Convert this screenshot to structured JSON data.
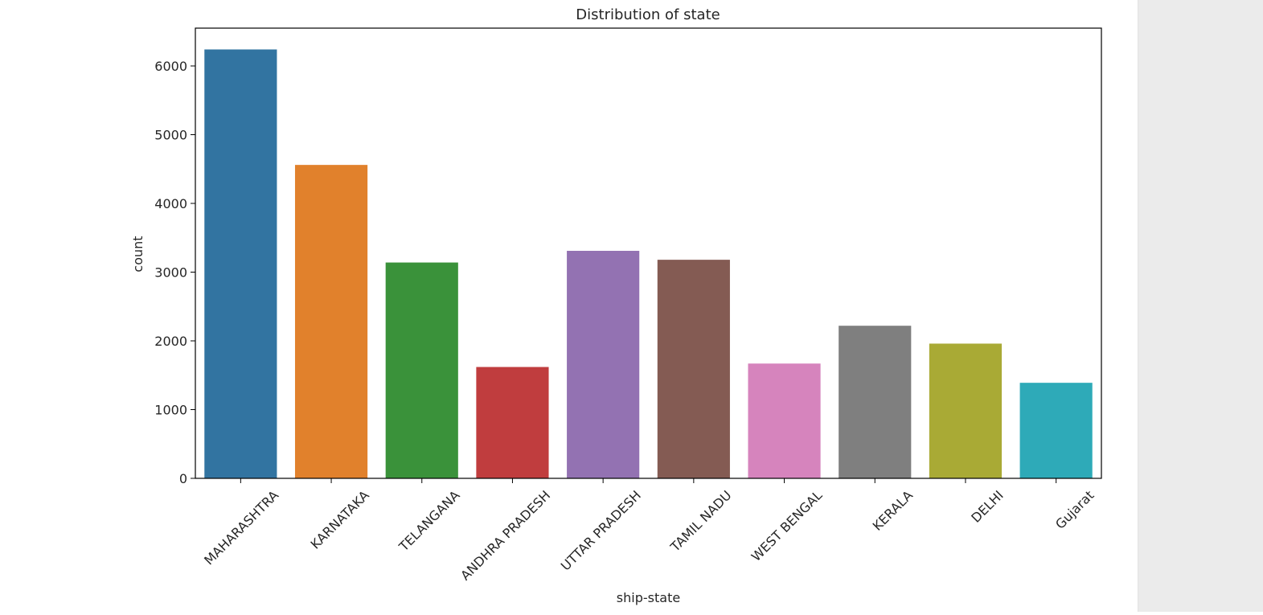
{
  "chart_data": {
    "type": "bar",
    "title": "Distribution of state",
    "xlabel": "ship-state",
    "ylabel": "count",
    "categories": [
      "MAHARASHTRA",
      "KARNATAKA",
      "TELANGANA",
      "ANDHRA PRADESH",
      "UTTAR PRADESH",
      "TAMIL NADU",
      "WEST BENGAL",
      "KERALA",
      "DELHI",
      "Gujarat"
    ],
    "values": [
      6240,
      4560,
      3140,
      1620,
      3310,
      3180,
      1670,
      2220,
      1960,
      1390
    ],
    "colors": [
      "#3274a1",
      "#e1812c",
      "#3a923a",
      "#c03d3e",
      "#9372b2",
      "#845b53",
      "#d684bd",
      "#7f7f7f",
      "#a9aa35",
      "#2eaab8"
    ],
    "ylim": [
      0,
      6550
    ],
    "yticks": [
      0,
      1000,
      2000,
      3000,
      4000,
      5000,
      6000
    ],
    "grid": false,
    "legend": "none"
  }
}
